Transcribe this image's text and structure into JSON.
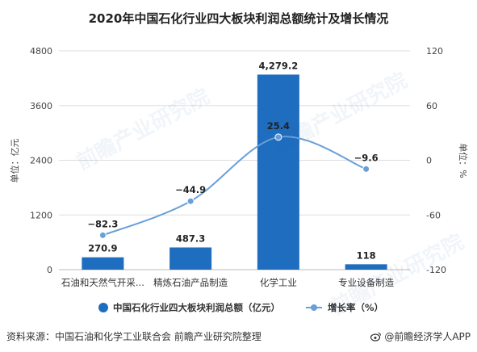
{
  "chart_data": {
    "type": "bar",
    "title": "2020年中国石化行业四大板块利润总额统计及增长情况",
    "categories": [
      "石油和天然气开采...",
      "精炼石油产品制造",
      "化学工业",
      "专业设备制造"
    ],
    "series": [
      {
        "name": "中国石化行业四大板块利润总额（亿元）",
        "type": "bar",
        "axis": "left",
        "values": [
          270.9,
          487.3,
          4279.2,
          118
        ],
        "labels": [
          "270.9",
          "487.3",
          "4,279.2",
          "118"
        ],
        "color": "#1f6dbf"
      },
      {
        "name": "增长率（%）",
        "type": "line",
        "axis": "right",
        "values": [
          -82.3,
          -44.9,
          25.4,
          -9.6
        ],
        "labels": [
          "−82.3",
          "−44.9",
          "25.4",
          "−9.6"
        ],
        "color": "#6a9fd8"
      }
    ],
    "ylabel_left": "单位：亿元",
    "ylabel_right": "单位：%",
    "ylim_left": [
      0,
      4800
    ],
    "yticks_left": [
      "0",
      "1200",
      "2400",
      "3600",
      "4800"
    ],
    "ylim_right": [
      -120,
      120
    ],
    "yticks_right": [
      "-120",
      "-60",
      "0",
      "60",
      "120"
    ],
    "grid": true,
    "legend_position": "bottom"
  },
  "footer": {
    "source": "资料来源：中国石油和化学工业联合会 前瞻产业研究院整理",
    "brand": "@前瞻经济学人APP"
  }
}
